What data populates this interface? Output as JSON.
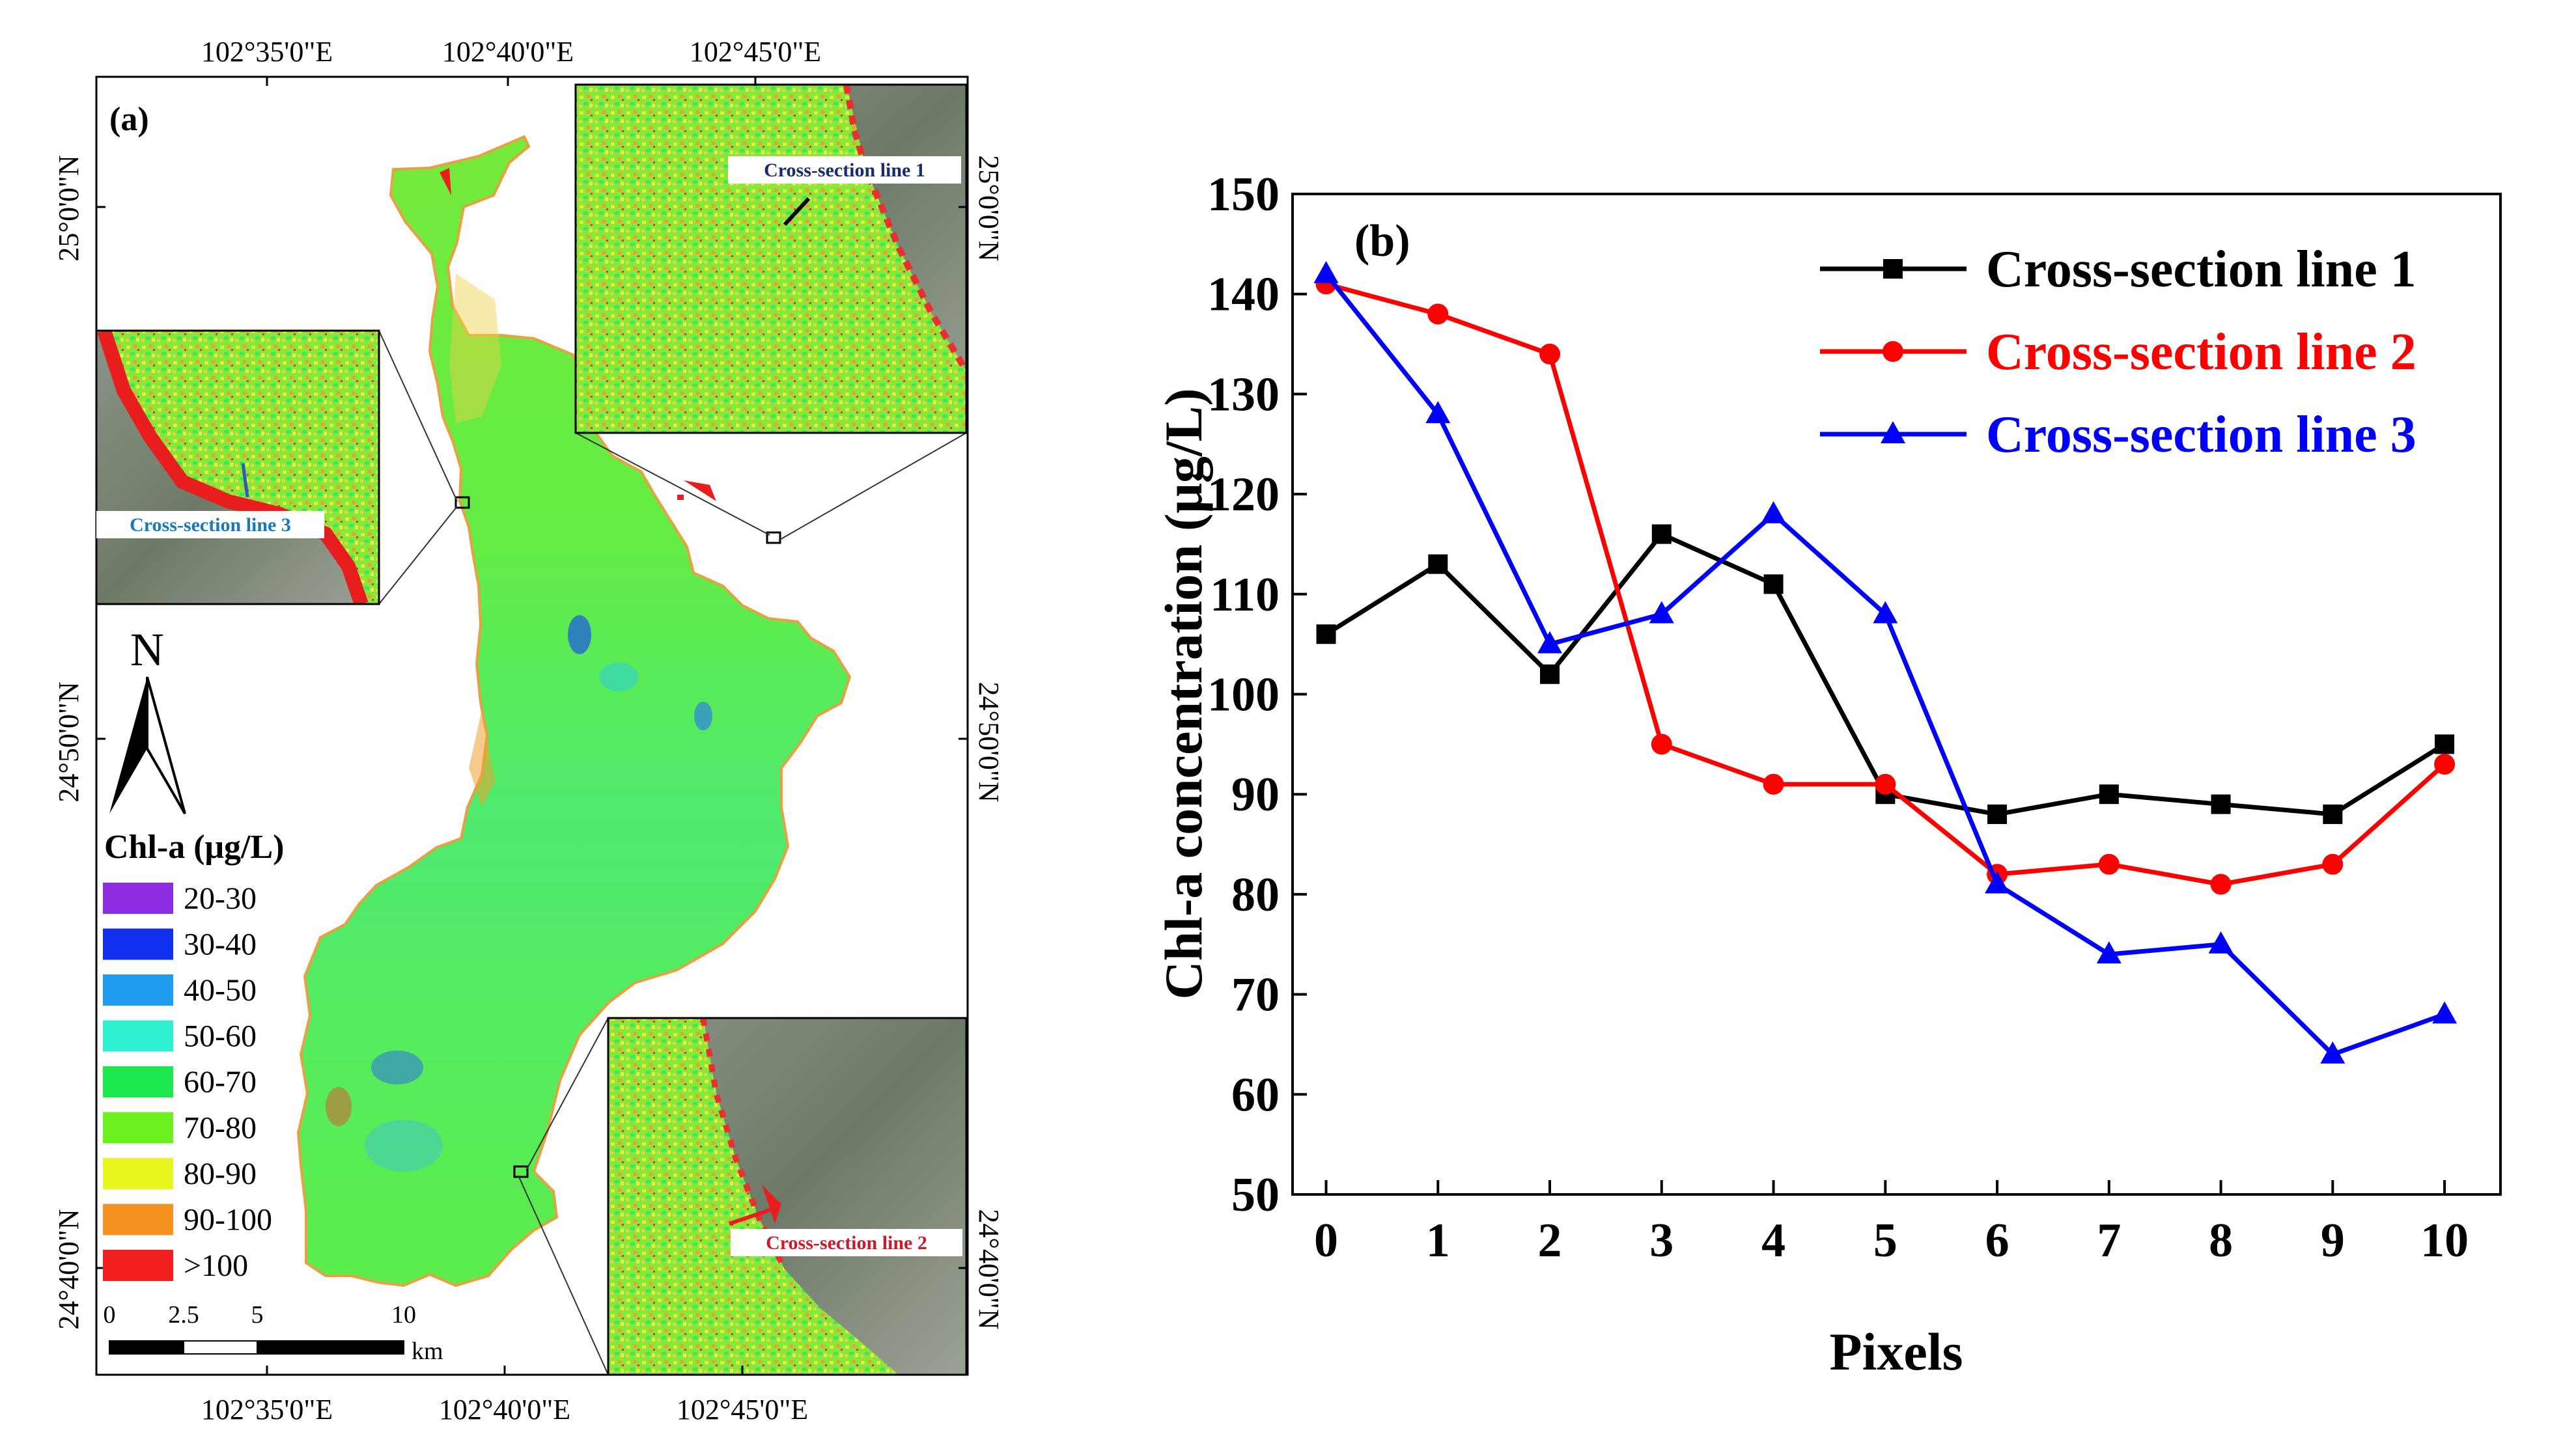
{
  "panel_a": {
    "label": "(a)",
    "lon_top": [
      "102°35'0\"E",
      "102°40'0\"E",
      "102°45'0\"E"
    ],
    "lon_bottom": [
      "102°35'0\"E",
      "102°40'0\"E",
      "102°45'0\"E"
    ],
    "lat_left": [
      "25°0'0\"N",
      "24°50'0\"N",
      "24°40'0\"N"
    ],
    "lat_right": [
      "25°0'0\"N",
      "24°50'0\"N",
      "24°40'0\"N"
    ],
    "north_label": "N",
    "legend_title": "Chl-a (μg/L)",
    "legend": [
      {
        "label": "20-30",
        "color": "#8B2BE2"
      },
      {
        "label": "30-40",
        "color": "#1030F0"
      },
      {
        "label": "40-50",
        "color": "#1E9CF0"
      },
      {
        "label": "50-60",
        "color": "#2EF0D0"
      },
      {
        "label": "60-70",
        "color": "#1EE850"
      },
      {
        "label": "70-80",
        "color": "#6CF01E"
      },
      {
        "label": "80-90",
        "color": "#E8F51E"
      },
      {
        "label": "90-100",
        "color": "#F5911E"
      },
      {
        "label": ">100",
        "color": "#F01E1E"
      }
    ],
    "scalebar": {
      "ticks": [
        "0",
        "2.5",
        "5",
        "10"
      ],
      "unit": "km"
    },
    "insets": [
      {
        "label": "Cross-section line 1",
        "label_color": "#1a2a6e"
      },
      {
        "label": "Cross-section line 3",
        "label_color": "#1a7ab8"
      },
      {
        "label": "Cross-section line 2",
        "label_color": "#cc1a2a"
      }
    ]
  },
  "chart_data": {
    "type": "line",
    "panel_label": "(b)",
    "title": "",
    "xlabel": "Pixels",
    "ylabel": "Chl-a concentration (μg/L)",
    "x": [
      0,
      1,
      2,
      3,
      4,
      5,
      6,
      7,
      8,
      9,
      10
    ],
    "xlim": [
      -0.3,
      10.5
    ],
    "ylim": [
      50,
      150
    ],
    "yticks": [
      50,
      60,
      70,
      80,
      90,
      100,
      110,
      120,
      130,
      140,
      150
    ],
    "grid": false,
    "legend_position": "top-right",
    "series": [
      {
        "name": "Cross-section line 1",
        "color": "#000000",
        "marker": "square",
        "values": [
          106,
          113,
          102,
          116,
          111,
          90,
          88,
          90,
          89,
          88,
          95
        ]
      },
      {
        "name": "Cross-section line 2",
        "color": "#ff0000",
        "marker": "circle",
        "values": [
          141,
          138,
          134,
          95,
          91,
          91,
          82,
          83,
          81,
          83,
          93
        ]
      },
      {
        "name": "Cross-section line 3",
        "color": "#0000ff",
        "marker": "triangle",
        "values": [
          142,
          128,
          105,
          108,
          118,
          108,
          81,
          74,
          75,
          64,
          68
        ]
      }
    ]
  }
}
